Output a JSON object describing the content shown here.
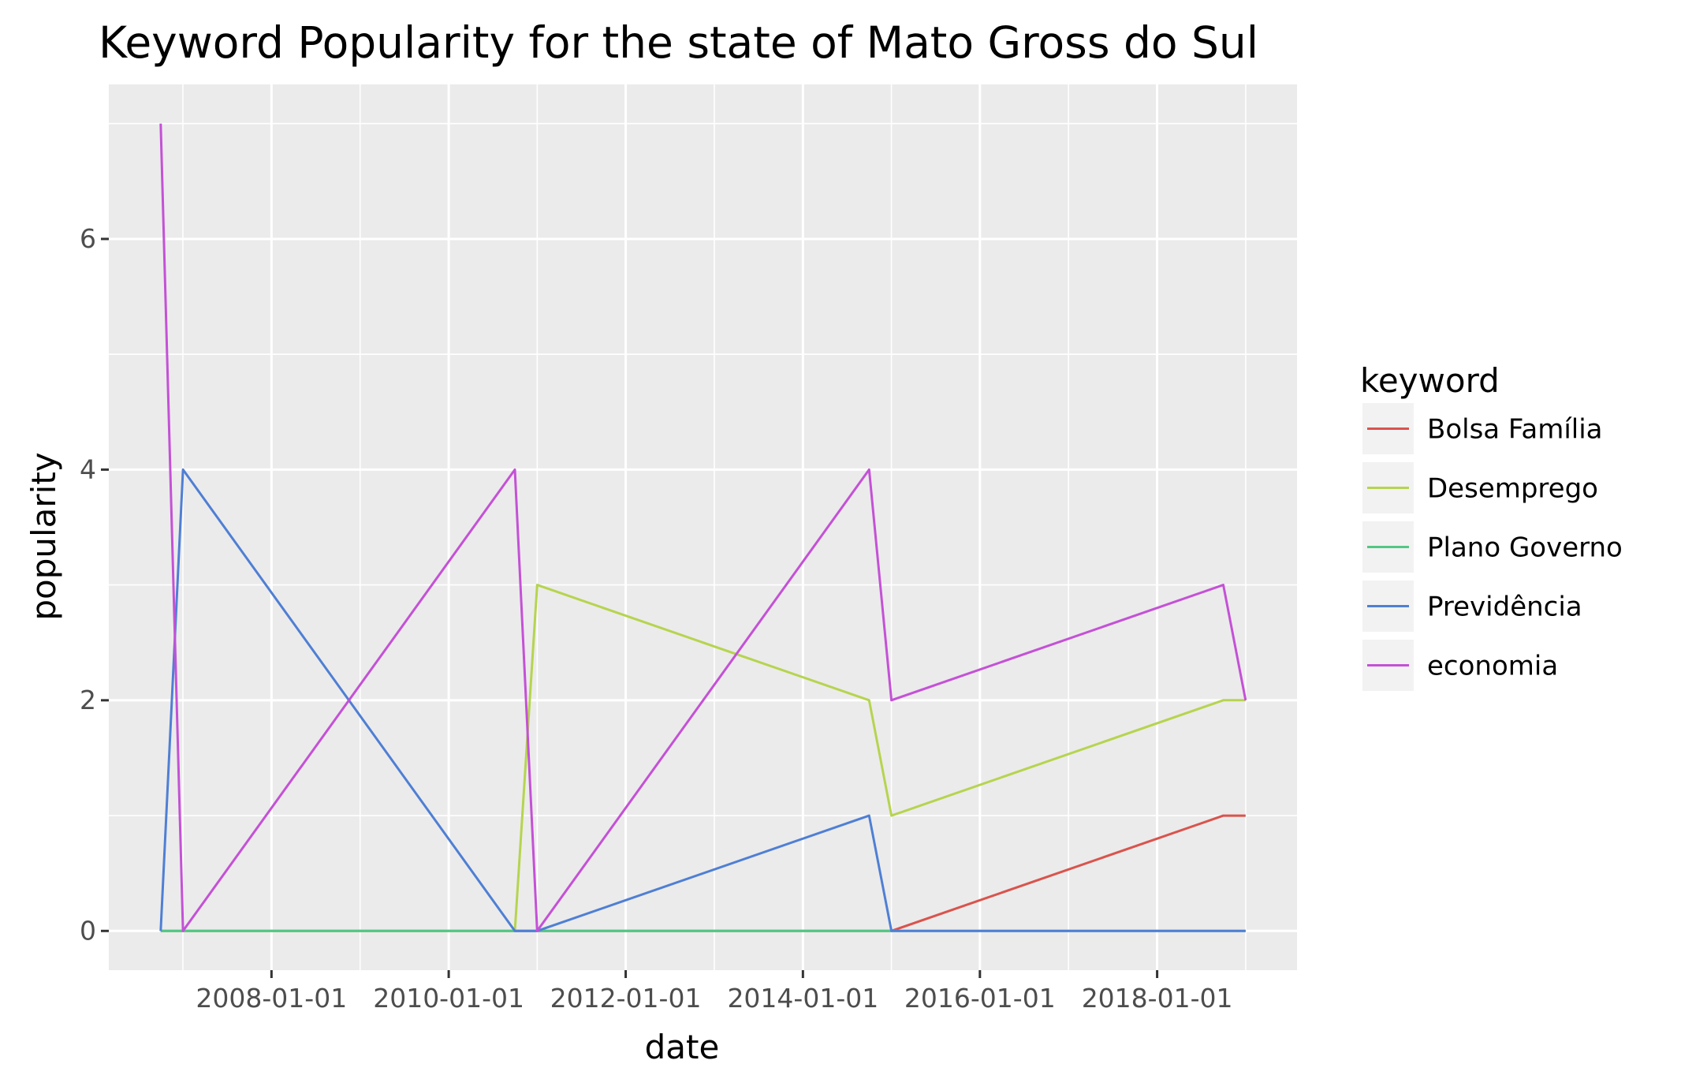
{
  "chart_data": {
    "type": "line",
    "title": "Keyword Popularity for the state of Mato Gross do Sul",
    "xlabel": "date",
    "ylabel": "popularity",
    "x_axis_type": "date",
    "xlim": [
      "2006-03-01",
      "2019-08-01"
    ],
    "ylim": [
      -0.34,
      7.34
    ],
    "x_ticks": [
      "2008-01-01",
      "2010-01-01",
      "2012-01-01",
      "2014-01-01",
      "2016-01-01",
      "2018-01-01"
    ],
    "y_ticks": [
      0,
      2,
      4,
      6
    ],
    "grid": true,
    "background": "#ebebeb",
    "legend": {
      "title": "keyword",
      "position": "right"
    },
    "series": [
      {
        "name": "Bolsa Família",
        "color": "#d9544d",
        "x": [
          "2006-10-01",
          "2007-01-01",
          "2010-10-01",
          "2011-01-01",
          "2014-10-01",
          "2015-01-01",
          "2018-10-01",
          "2019-01-01"
        ],
        "y": [
          0,
          0,
          0,
          0,
          0,
          0,
          1,
          1
        ]
      },
      {
        "name": "Desemprego",
        "color": "#b6d44f",
        "x": [
          "2006-10-01",
          "2007-01-01",
          "2010-10-01",
          "2011-01-01",
          "2014-10-01",
          "2015-01-01",
          "2018-10-01",
          "2019-01-01"
        ],
        "y": [
          0,
          0,
          0,
          3,
          2,
          1,
          2,
          2
        ]
      },
      {
        "name": "Plano Governo",
        "color": "#52c783",
        "x": [
          "2006-10-01",
          "2007-01-01",
          "2010-10-01",
          "2011-01-01",
          "2014-10-01",
          "2015-01-01",
          "2018-10-01",
          "2019-01-01"
        ],
        "y": [
          0,
          0,
          0,
          0,
          0,
          0,
          0,
          0
        ]
      },
      {
        "name": "Previdência",
        "color": "#4f7fd4",
        "x": [
          "2006-10-01",
          "2007-01-01",
          "2010-10-01",
          "2011-01-01",
          "2014-10-01",
          "2015-01-01",
          "2018-10-01",
          "2019-01-01"
        ],
        "y": [
          0,
          4,
          0,
          0,
          1,
          0,
          0,
          0
        ]
      },
      {
        "name": "economia",
        "color": "#c451d6",
        "x": [
          "2006-10-01",
          "2007-01-01",
          "2010-10-01",
          "2011-01-01",
          "2014-10-01",
          "2015-01-01",
          "2018-10-01",
          "2019-01-01"
        ],
        "y": [
          7,
          0,
          4,
          0,
          4,
          2,
          3,
          2
        ]
      }
    ]
  }
}
